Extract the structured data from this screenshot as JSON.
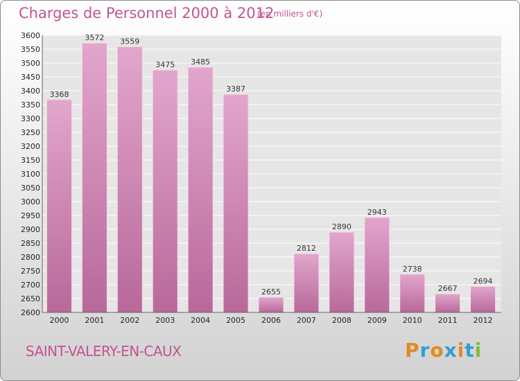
{
  "title": "Charges de Personnel 2000 à 2012",
  "subtitle": "(en milliers d'€)",
  "city": "SAINT-VALERY-EN-CAUX",
  "logo": {
    "text": "Proxiti",
    "letters": [
      "P",
      "r",
      "o",
      "x",
      "i",
      "t",
      "i"
    ],
    "colors": [
      "#e38a1f",
      "#2f9fd8",
      "#e38a1f",
      "#2f9fd8",
      "#e38a1f",
      "#2f9fd8",
      "#7cbf3a"
    ]
  },
  "colors": {
    "bar": "#d48aba",
    "bar_dark": "#b8699a",
    "accent": "#c2548d"
  },
  "chart_data": {
    "type": "bar",
    "categories": [
      "2000",
      "2001",
      "2002",
      "2003",
      "2004",
      "2005",
      "2006",
      "2007",
      "2008",
      "2009",
      "2010",
      "2011",
      "2012"
    ],
    "values": [
      3368,
      3572,
      3559,
      3475,
      3485,
      3387,
      2655,
      2812,
      2890,
      2943,
      2738,
      2667,
      2694
    ],
    "ylim": [
      2600,
      3600
    ],
    "yticks": [
      2600,
      2650,
      2700,
      2750,
      2800,
      2850,
      2900,
      2950,
      3000,
      3050,
      3100,
      3150,
      3200,
      3250,
      3300,
      3350,
      3400,
      3450,
      3500,
      3550,
      3600
    ],
    "grid": true
  }
}
